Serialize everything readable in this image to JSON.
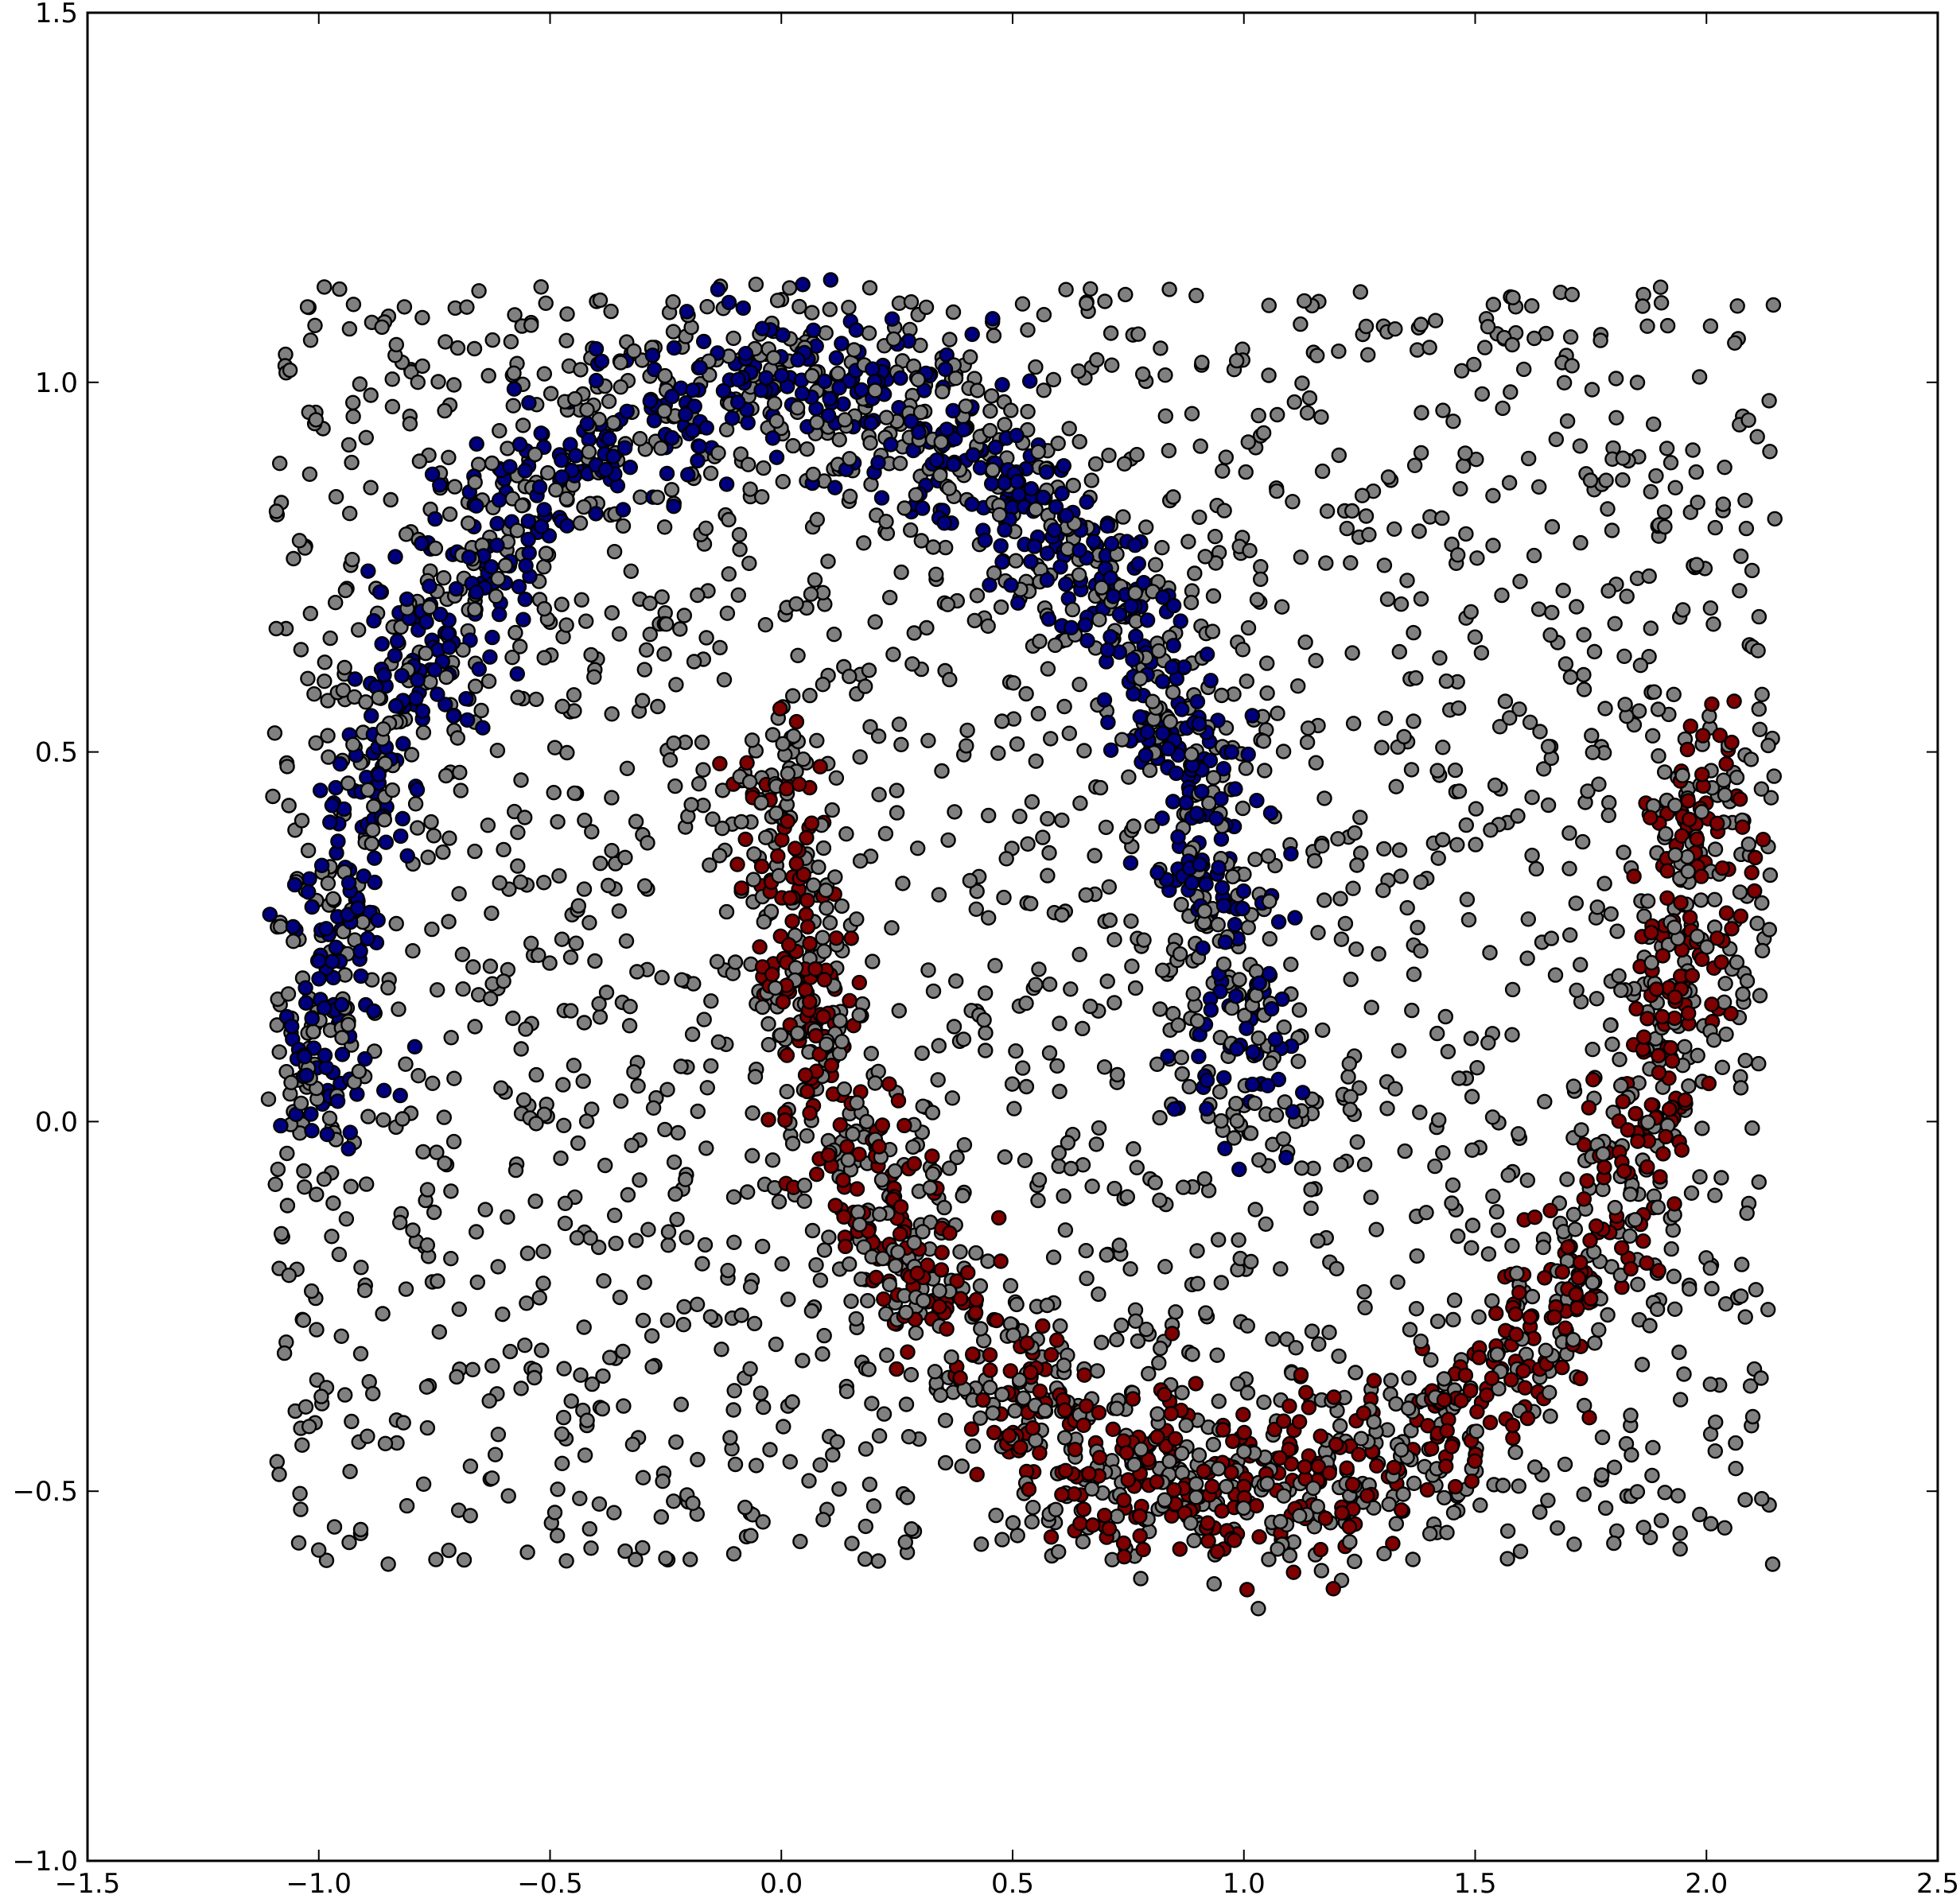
{
  "chart_data": {
    "type": "scatter",
    "title": "",
    "xlabel": "",
    "ylabel": "",
    "xlim": [
      -1.5,
      2.5
    ],
    "ylim": [
      -1.0,
      1.5
    ],
    "xticks": [
      -1.5,
      -1.0,
      -0.5,
      0.0,
      0.5,
      1.0,
      1.5,
      2.0,
      2.5
    ],
    "xtick_labels": [
      "−1.5",
      "−1.0",
      "−0.5",
      "0.0",
      "0.5",
      "1.0",
      "1.5",
      "2.0",
      "2.5"
    ],
    "yticks": [
      -1.0,
      -0.5,
      0.0,
      0.5,
      1.0,
      1.5
    ],
    "ytick_labels": [
      "−1.0",
      "−0.5",
      "0.0",
      "0.5",
      "1.0",
      "1.5"
    ],
    "grid": false,
    "legend": "none",
    "series": [
      {
        "label_type": "upper-moon cluster",
        "color": "#00007f",
        "description": "upper half-moon arc, center (0, 0), radius 1, x from -1.1 to 1.1",
        "arc": {
          "cx": 0.0,
          "cy": 0.0,
          "r": 1.0,
          "theta_start_deg": 0,
          "theta_end_deg": 180,
          "spread": 0.06
        }
      },
      {
        "label_type": "lower-moon cluster",
        "color": "#7f0000",
        "description": "lower half-moon arc, center (1, 0.5), radius 1, x from -0.1 to 2.1",
        "arc": {
          "cx": 1.0,
          "cy": 0.5,
          "r": 1.0,
          "theta_start_deg": 180,
          "theta_end_deg": 360,
          "spread": 0.06
        }
      },
      {
        "label_type": "unlabeled / background",
        "color": "#808080",
        "description": "uniform points over x in [-1.1, 2.15], y in [-0.6, 1.13] plus points along both moons",
        "uniform_region": {
          "x": [
            -1.1,
            2.15
          ],
          "y": [
            -0.6,
            1.13
          ]
        }
      }
    ],
    "colors": {
      "upper_moon": "#00007f",
      "lower_moon": "#7f0000",
      "background_points": "#808080",
      "marker_edge": "#000000"
    }
  }
}
